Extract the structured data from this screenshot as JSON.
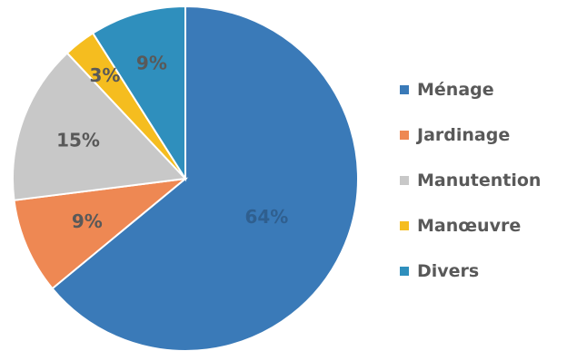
{
  "chart_data": {
    "type": "pie",
    "categories": [
      "Ménage",
      "Jardinage",
      "Manutention",
      "Manœuvre",
      "Divers"
    ],
    "values": [
      64,
      9,
      15,
      3,
      9
    ],
    "labels": [
      "64%",
      "9%",
      "15%",
      "3%",
      "9%"
    ],
    "colors": [
      "#3a7ab8",
      "#ee8853",
      "#c8c8c8",
      "#f5bd1f",
      "#2f8fbd"
    ],
    "label_colors": [
      "#2f5f8f",
      "#595959",
      "#595959",
      "#595959",
      "#595959"
    ],
    "start_angle_deg": 0,
    "direction": "clockwise",
    "legend_position": "right"
  },
  "legend": {
    "items": [
      {
        "label": "Ménage",
        "color": "#3a7ab8"
      },
      {
        "label": "Jardinage",
        "color": "#ee8853"
      },
      {
        "label": "Manutention",
        "color": "#c8c8c8"
      },
      {
        "label": "Manœuvre",
        "color": "#f5bd1f"
      },
      {
        "label": "Divers",
        "color": "#2f8fbd"
      }
    ]
  }
}
